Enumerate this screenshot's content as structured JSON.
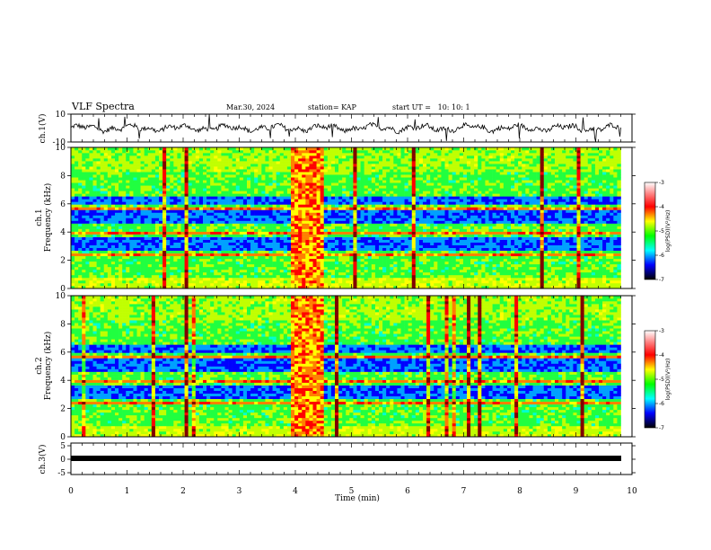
{
  "header": {
    "title": "VLF Spectra",
    "date": "Mar.30, 2024",
    "station": "station= KAP",
    "start": "start UT =   10: 10: 1"
  },
  "chart_data": [
    {
      "type": "line",
      "panel": "ch1-waveform",
      "ylabel": "ch.1(V)",
      "ylim": [
        -10,
        10
      ],
      "y_ticks": [
        "10",
        "-10"
      ],
      "x_range": [
        0,
        10
      ],
      "description_values": {
        "baseline": 0,
        "typical_amplitude": 3,
        "occasional_spikes": 10
      }
    },
    {
      "type": "heatmap",
      "panel": "ch1-spectrogram",
      "ylabel": "ch.1\nFrequency (kHz)",
      "ylim": [
        0,
        10
      ],
      "y_ticks": [
        "0",
        "2",
        "4",
        "6",
        "8",
        "10"
      ],
      "x_range": [
        0,
        9.8
      ],
      "colorbar": {
        "label": "log(PSD)(V²/Hz)",
        "range": [
          -7,
          -3
        ],
        "ticks": [
          "-3",
          "-4",
          "-5",
          "-6",
          "-7"
        ]
      },
      "bright_segment_min": [
        3.9,
        4.5
      ]
    },
    {
      "type": "heatmap",
      "panel": "ch2-spectrogram",
      "ylabel": "ch.2\nFrequency (kHz)",
      "ylim": [
        0,
        10
      ],
      "y_ticks": [
        "0",
        "2",
        "4",
        "6",
        "8",
        "10"
      ],
      "x_range": [
        0,
        9.8
      ],
      "colorbar": {
        "label": "log(PSD)(V²/Hz)",
        "range": [
          -7,
          -3
        ],
        "ticks": [
          "-3",
          "-4",
          "-5",
          "-6",
          "-7"
        ]
      },
      "bright_segment_min": [
        3.9,
        4.5
      ]
    },
    {
      "type": "line",
      "panel": "ch3-waveform",
      "ylabel": "ch.3(V)",
      "ylim": [
        -5,
        5
      ],
      "y_ticks": [
        "5",
        "0",
        "-5"
      ],
      "x_range": [
        0,
        9.8
      ],
      "level": -1
    }
  ],
  "xaxis": {
    "label": "Time (min)",
    "ticks": [
      "0",
      "1",
      "2",
      "3",
      "4",
      "5",
      "6",
      "7",
      "8",
      "9",
      "10"
    ],
    "range": [
      0,
      10
    ]
  },
  "colors": {
    "waveform": "#000000",
    "palette": [
      "#00006e",
      "#0000ff",
      "#00a0ff",
      "#00ffd0",
      "#20ff40",
      "#c0ff00",
      "#ffff00",
      "#ff8000",
      "#ff0000",
      "#800000"
    ]
  }
}
